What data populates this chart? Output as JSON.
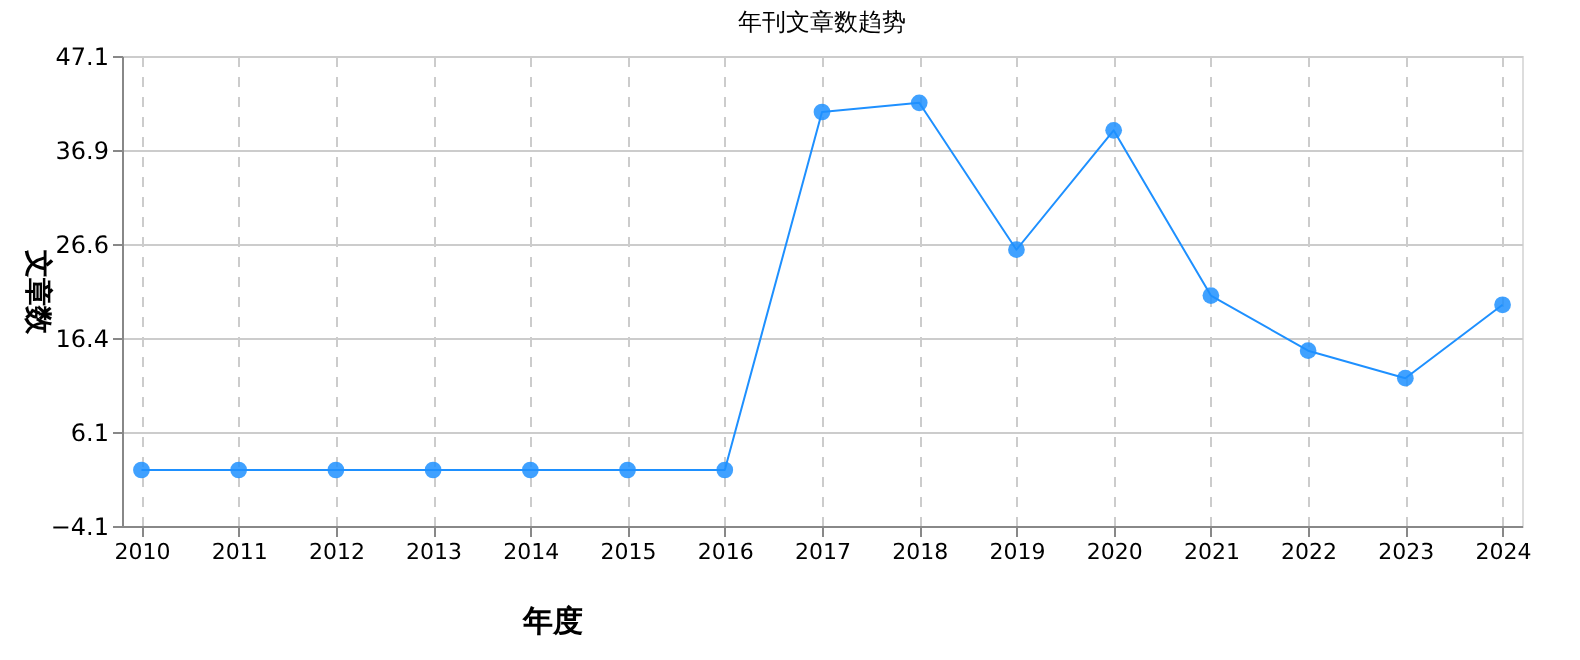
{
  "chart_data": {
    "type": "line",
    "title": "年刊文章数趋势",
    "xlabel": "年度",
    "ylabel": "文章数",
    "categories": [
      "2010",
      "2011",
      "2012",
      "2013",
      "2014",
      "2015",
      "2016",
      "2017",
      "2018",
      "2019",
      "2020",
      "2021",
      "2022",
      "2023",
      "2024"
    ],
    "series": [
      {
        "color": "#1e90ff",
        "values": [
          2,
          2,
          2,
          2,
          2,
          2,
          2,
          41,
          42,
          26,
          39,
          21,
          15,
          12,
          20
        ]
      }
    ],
    "ylim": [
      -4.1,
      47.1
    ],
    "yticks": [
      -4.1,
      6.1,
      16.4,
      26.6,
      36.9,
      47.1
    ],
    "grid": true,
    "marker": "circle",
    "line_style": "solid"
  }
}
